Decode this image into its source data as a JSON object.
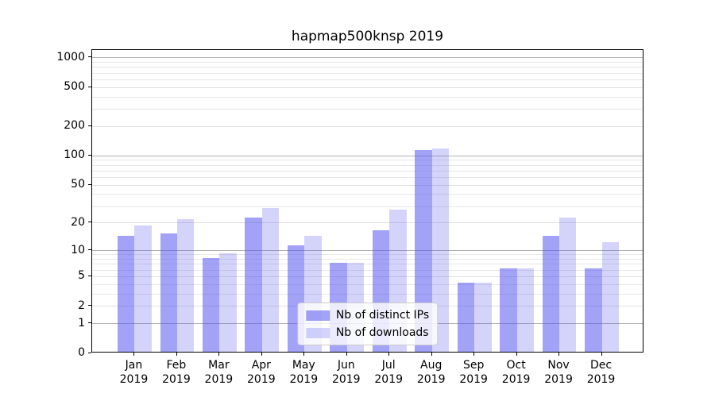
{
  "chart_data": {
    "type": "bar",
    "title": "hapmap500knsp 2019",
    "categories": [
      "Jan 2019",
      "Feb 2019",
      "Mar 2019",
      "Apr 2019",
      "May 2019",
      "Jun 2019",
      "Jul 2019",
      "Aug 2019",
      "Sep 2019",
      "Oct 2019",
      "Nov 2019",
      "Dec 2019"
    ],
    "months": [
      "Jan",
      "Feb",
      "Mar",
      "Apr",
      "May",
      "Jun",
      "Jul",
      "Aug",
      "Sep",
      "Oct",
      "Nov",
      "Dec"
    ],
    "year": "2019",
    "series": [
      {
        "name": "Nb of distinct IPs",
        "color": "#5555ee",
        "alpha": 0.55,
        "values": [
          14,
          15,
          8,
          22,
          11,
          7,
          16,
          110,
          4,
          6,
          14,
          6
        ]
      },
      {
        "name": "Nb of downloads",
        "color": "#5555ee",
        "alpha": 0.25,
        "values": [
          18,
          21,
          9,
          28,
          14,
          7,
          27,
          114,
          4,
          6,
          22,
          12
        ]
      }
    ],
    "y_scale": "log1p",
    "y_max": 1200,
    "y_ticks": [
      0,
      1,
      2,
      5,
      10,
      20,
      50,
      100,
      200,
      500,
      1000
    ],
    "y_major_gridlines": [
      1,
      10,
      100,
      1000
    ],
    "y_minor_gridlines": [
      3,
      4,
      6,
      7,
      8,
      9,
      30,
      40,
      60,
      70,
      80,
      90,
      300,
      400,
      600,
      700,
      800,
      900
    ],
    "grid": true,
    "legend_position": "lower center",
    "colors": {
      "major_grid": "#b2b2b2",
      "minor_grid": "#e7e7e7",
      "labeled_grid": "#e0e0e0",
      "spine": "#000000",
      "background": "#ffffff"
    }
  }
}
